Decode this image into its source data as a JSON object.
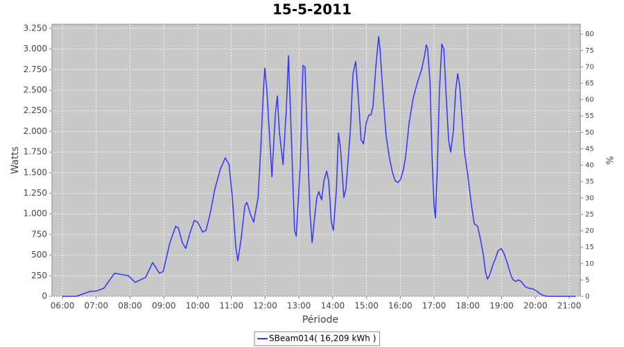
{
  "chart_data": {
    "type": "line",
    "title": "15-5-2011",
    "x_label": "Période",
    "y_label": "Watts",
    "y2_label": "%",
    "x": [
      6.0,
      6.41,
      6.82,
      7.01,
      7.23,
      7.54,
      7.95,
      8.15,
      8.46,
      8.67,
      8.87,
      8.98,
      9.18,
      9.35,
      9.43,
      9.55,
      9.65,
      9.76,
      9.9,
      10.0,
      10.15,
      10.25,
      10.37,
      10.51,
      10.68,
      10.82,
      10.93,
      11.03,
      11.13,
      11.19,
      11.29,
      11.4,
      11.46,
      11.56,
      11.66,
      11.79,
      11.87,
      11.95,
      11.99,
      12.05,
      12.18,
      12.2,
      12.3,
      12.36,
      12.42,
      12.53,
      12.63,
      12.69,
      12.77,
      12.87,
      12.92,
      13.04,
      13.12,
      13.18,
      13.24,
      13.33,
      13.39,
      13.45,
      13.53,
      13.59,
      13.67,
      13.74,
      13.82,
      13.88,
      13.96,
      14.02,
      14.11,
      14.17,
      14.23,
      14.33,
      14.39,
      14.52,
      14.6,
      14.68,
      14.76,
      14.84,
      14.91,
      14.99,
      15.07,
      15.13,
      15.19,
      15.28,
      15.36,
      15.4,
      15.48,
      15.58,
      15.67,
      15.77,
      15.85,
      15.93,
      16.01,
      16.1,
      16.16,
      16.26,
      16.38,
      16.51,
      16.63,
      16.71,
      16.77,
      16.81,
      16.88,
      16.94,
      17.0,
      17.04,
      17.1,
      17.16,
      17.23,
      17.29,
      17.35,
      17.43,
      17.49,
      17.57,
      17.64,
      17.7,
      17.76,
      17.82,
      17.9,
      17.99,
      18.11,
      18.19,
      18.29,
      18.37,
      18.46,
      18.52,
      18.58,
      18.64,
      18.74,
      18.81,
      18.89,
      18.99,
      19.07,
      19.17,
      19.28,
      19.34,
      19.42,
      19.5,
      19.58,
      19.69,
      19.79,
      19.93,
      20.02,
      20.14,
      20.24,
      20.36,
      21.19
    ],
    "series": [
      {
        "name": "SBeam014( 16,209 kWh )",
        "color": "#3333ff",
        "values": [
          0,
          0,
          60,
          65,
          100,
          280,
          250,
          170,
          230,
          410,
          280,
          300,
          650,
          850,
          830,
          650,
          580,
          750,
          920,
          900,
          780,
          800,
          1000,
          1300,
          1550,
          1680,
          1600,
          1200,
          600,
          430,
          700,
          1100,
          1140,
          1000,
          900,
          1200,
          1800,
          2500,
          2770,
          2500,
          1600,
          1450,
          2200,
          2430,
          2000,
          1600,
          2300,
          2920,
          2000,
          800,
          730,
          1600,
          2800,
          2780,
          2000,
          1000,
          650,
          900,
          1200,
          1270,
          1170,
          1400,
          1520,
          1400,
          900,
          800,
          1300,
          1980,
          1800,
          1200,
          1300,
          2000,
          2700,
          2850,
          2400,
          1900,
          1850,
          2100,
          2200,
          2200,
          2300,
          2800,
          3150,
          3000,
          2500,
          1950,
          1700,
          1500,
          1400,
          1380,
          1420,
          1550,
          1700,
          2100,
          2400,
          2600,
          2750,
          2900,
          3050,
          3000,
          2600,
          1700,
          1100,
          950,
          1600,
          2500,
          3060,
          3000,
          2500,
          1900,
          1750,
          2000,
          2500,
          2700,
          2550,
          2200,
          1750,
          1500,
          1100,
          880,
          850,
          700,
          500,
          300,
          210,
          250,
          380,
          450,
          550,
          580,
          520,
          400,
          250,
          200,
          180,
          200,
          180,
          120,
          100,
          90,
          70,
          30,
          10,
          0,
          0
        ]
      }
    ],
    "xlim": [
      5.69,
      21.33
    ],
    "xticks": [
      {
        "value": 6,
        "label": "06:00"
      },
      {
        "value": 7,
        "label": "07:00"
      },
      {
        "value": 8,
        "label": "08:00"
      },
      {
        "value": 9,
        "label": "09:00"
      },
      {
        "value": 10,
        "label": "10:00"
      },
      {
        "value": 11,
        "label": "11:00"
      },
      {
        "value": 12,
        "label": "12:00"
      },
      {
        "value": 13,
        "label": "13:00"
      },
      {
        "value": 14,
        "label": "14:00"
      },
      {
        "value": 15,
        "label": "15:00"
      },
      {
        "value": 16,
        "label": "16:00"
      },
      {
        "value": 17,
        "label": "17:00"
      },
      {
        "value": 18,
        "label": "18:00"
      },
      {
        "value": 19,
        "label": "19:00"
      },
      {
        "value": 20,
        "label": "20:00"
      },
      {
        "value": 21,
        "label": "21:00"
      }
    ],
    "ylim": [
      0,
      3300
    ],
    "yticks": [
      0,
      250,
      500,
      750,
      {
        "value": 1000,
        "label": "1.000"
      },
      {
        "value": 1250,
        "label": "1.250"
      },
      {
        "value": 1500,
        "label": "1.500"
      },
      {
        "value": 1750,
        "label": "1.750"
      },
      {
        "value": 2000,
        "label": "2.000"
      },
      {
        "value": 2250,
        "label": "2.250"
      },
      {
        "value": 2500,
        "label": "2.500"
      },
      {
        "value": 2750,
        "label": "2.750"
      },
      {
        "value": 3000,
        "label": "3.000"
      },
      {
        "value": 3250,
        "label": "3.250"
      }
    ],
    "y2lim": [
      0,
      83
    ],
    "y2ticks": [
      0,
      5,
      10,
      15,
      20,
      25,
      30,
      35,
      40,
      45,
      50,
      55,
      60,
      65,
      70,
      75,
      80
    ],
    "grid": true,
    "plot_background": "#c8c8c8",
    "legend": "bottom"
  }
}
